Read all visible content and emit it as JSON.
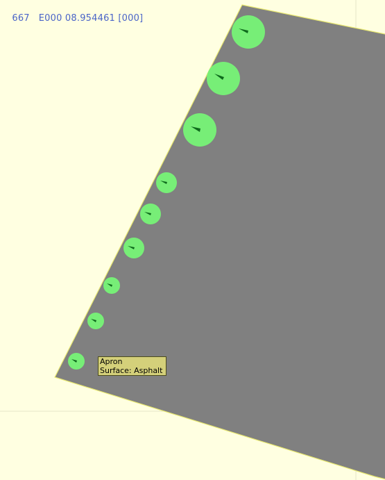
{
  "coordinates": {
    "latitude_partial": "667",
    "longitude": "E000 08.954461",
    "heading": "[000]"
  },
  "colors": {
    "background": "#ffffe1",
    "apron": "#808080",
    "apron_outline": "#e8e870",
    "stand": "#77ee77",
    "stand_marker": "#0e6a1c",
    "grid": "#e4e4c8",
    "coord_text": "#4a64c8",
    "tooltip_bg": "#d4d07a"
  },
  "tooltip": {
    "name": "Apron",
    "surface": "Surface: Asphalt"
  },
  "stands": [
    {
      "name": "parking-stand-1",
      "size": "large"
    },
    {
      "name": "parking-stand-2",
      "size": "large"
    },
    {
      "name": "parking-stand-3",
      "size": "large"
    },
    {
      "name": "parking-stand-4",
      "size": "medium"
    },
    {
      "name": "parking-stand-5",
      "size": "medium"
    },
    {
      "name": "parking-stand-6",
      "size": "medium"
    },
    {
      "name": "parking-stand-7",
      "size": "small"
    },
    {
      "name": "parking-stand-8",
      "size": "small"
    },
    {
      "name": "parking-stand-9",
      "size": "small"
    }
  ]
}
